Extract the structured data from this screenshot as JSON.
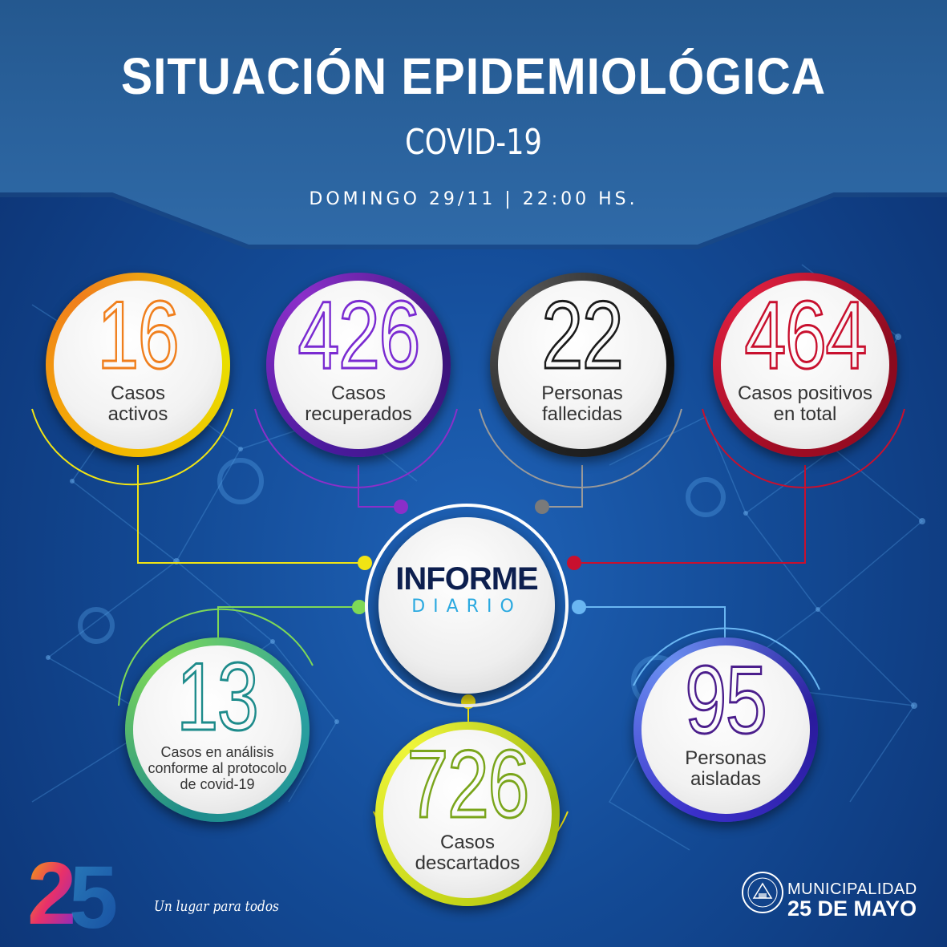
{
  "header": {
    "title": "SITUACIÓN EPIDEMIOLÓGICA",
    "subtitle": "COVID-19",
    "date": "DOMINGO 29/11 | 22:00 HS."
  },
  "center": {
    "title": "INFORME",
    "subtitle": "DIARIO"
  },
  "stats": {
    "activos": {
      "value": "16",
      "label1": "Casos",
      "label2": "activos",
      "color": "#f07f1d"
    },
    "recuperados": {
      "value": "426",
      "label1": "Casos",
      "label2": "recuperados",
      "color": "#7a2bd1"
    },
    "fallecidas": {
      "value": "22",
      "label1": "Personas",
      "label2": "fallecidas",
      "color": "#1a1a1a"
    },
    "positivos": {
      "value": "464",
      "label1": "Casos positivos",
      "label2": "en total",
      "color": "#c8102e"
    },
    "analisis": {
      "value": "13",
      "label1": "Casos en análisis",
      "label2": "conforme al protocolo",
      "label3": "de covid-19",
      "color": "#1d8b8b"
    },
    "descartados": {
      "value": "726",
      "label1": "Casos",
      "label2": "descartados",
      "color": "#7aa51b"
    },
    "aisladas": {
      "value": "95",
      "label1": "Personas",
      "label2": "aisladas",
      "color": "#4b1e8c"
    }
  },
  "footer": {
    "logo_text": "25",
    "slogan": "Un lugar para todos",
    "municipality_line1": "MUNICIPALIDAD",
    "municipality_line2": "25 DE MAYO"
  },
  "colors": {
    "band": "#2f6aa8",
    "background": "#134a95",
    "yellow_dot": "#f1e414",
    "purple_dot": "#8b2fc9",
    "gray_dot": "#7a7a7a",
    "red_dot": "#c8102e",
    "green_dot": "#7ed957",
    "blue_dot": "#6ab6f2"
  }
}
